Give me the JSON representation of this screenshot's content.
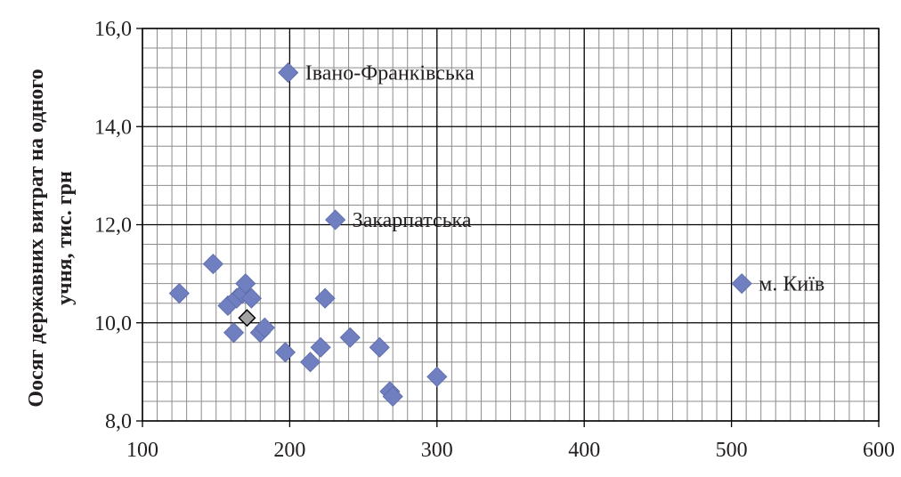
{
  "chart_data": {
    "type": "scatter",
    "title": "",
    "xlabel": "",
    "ylabel": "Оосяг державних витрат на одного учня, тис. грн",
    "ylabel_lines": [
      "Оосяг державних витрат на одного",
      "учня, тис. грн"
    ],
    "xlim": [
      100,
      600
    ],
    "ylim": [
      8.0,
      16.0
    ],
    "x_ticks": [
      100,
      200,
      300,
      400,
      500,
      600
    ],
    "x_tick_labels": [
      "100",
      "200",
      "300",
      "400",
      "500",
      "600"
    ],
    "y_ticks": [
      8.0,
      10.0,
      12.0,
      14.0,
      16.0
    ],
    "y_tick_labels": [
      "8,0",
      "10,0",
      "12,0",
      "14,0",
      "16,0"
    ],
    "grid": true,
    "marker": "diamond",
    "marker_color": "#6f7fbf",
    "highlight_color": "#a3a3a3",
    "major_grid_color": "#000000",
    "minor_grid_color": "#8c8c8c",
    "points": [
      {
        "x": 125,
        "y": 10.6
      },
      {
        "x": 148,
        "y": 11.2
      },
      {
        "x": 158,
        "y": 10.35
      },
      {
        "x": 162,
        "y": 9.8
      },
      {
        "x": 164,
        "y": 10.5
      },
      {
        "x": 168,
        "y": 10.6
      },
      {
        "x": 170,
        "y": 10.8
      },
      {
        "x": 174,
        "y": 10.5
      },
      {
        "x": 180,
        "y": 9.8
      },
      {
        "x": 183,
        "y": 9.9
      },
      {
        "x": 197,
        "y": 9.4
      },
      {
        "x": 199,
        "y": 15.1
      },
      {
        "x": 214,
        "y": 9.2
      },
      {
        "x": 221,
        "y": 9.5
      },
      {
        "x": 224,
        "y": 10.5
      },
      {
        "x": 231,
        "y": 12.1
      },
      {
        "x": 241,
        "y": 9.7
      },
      {
        "x": 261,
        "y": 9.5
      },
      {
        "x": 268,
        "y": 8.6
      },
      {
        "x": 270,
        "y": 8.5
      },
      {
        "x": 300,
        "y": 8.9
      },
      {
        "x": 507,
        "y": 10.8
      },
      {
        "x": 171,
        "y": 10.1,
        "highlight": true
      }
    ],
    "annotations": [
      {
        "text": "Івано-Франківська",
        "x": 199,
        "y": 15.1
      },
      {
        "text": "Закарпатська",
        "x": 231,
        "y": 12.1
      },
      {
        "text": "м. Київ",
        "x": 507,
        "y": 10.8
      }
    ]
  }
}
